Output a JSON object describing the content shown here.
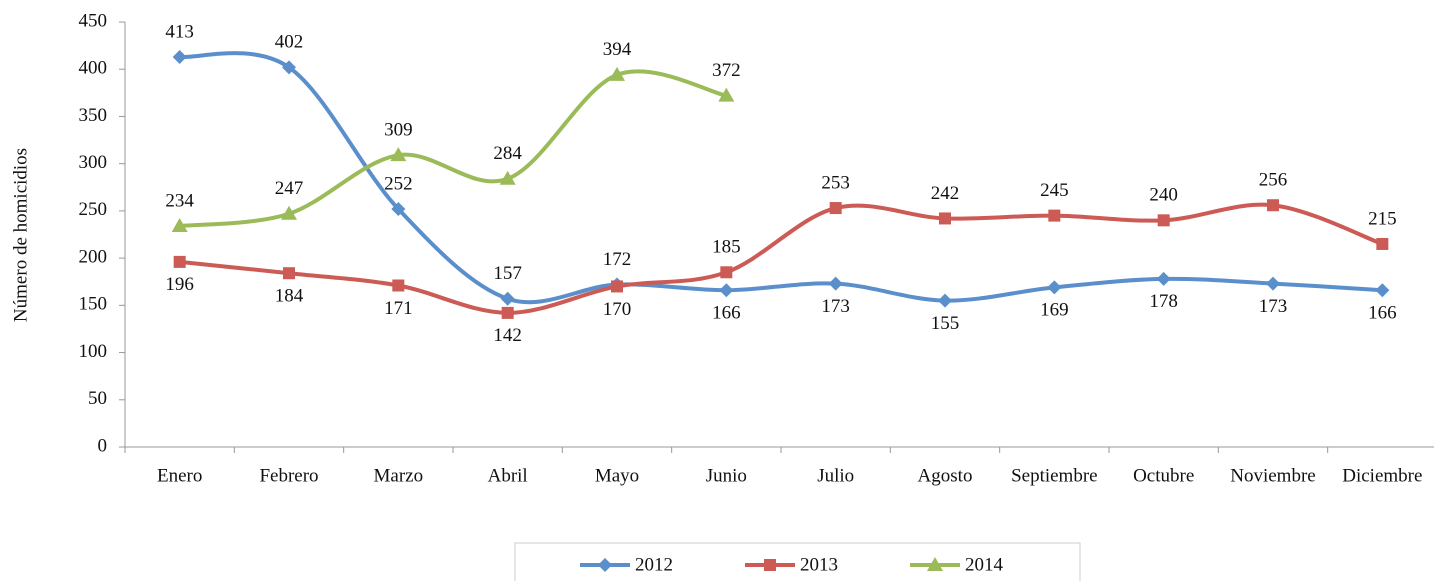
{
  "chart_data": {
    "type": "line",
    "y_label": "Número de homicidios",
    "categories": [
      "Enero",
      "Febrero",
      "Marzo",
      "Abril",
      "Mayo",
      "Junio",
      "Julio",
      "Agosto",
      "Septiembre",
      "Octubre",
      "Noviembre",
      "Diciembre"
    ],
    "series": [
      {
        "name": "2012",
        "color": "#5b8fcc",
        "marker": "diamond",
        "values": [
          413,
          402,
          252,
          157,
          172,
          166,
          173,
          155,
          169,
          178,
          173,
          166
        ]
      },
      {
        "name": "2013",
        "color": "#cc5a55",
        "marker": "square",
        "values": [
          196,
          184,
          171,
          142,
          170,
          185,
          253,
          242,
          245,
          240,
          256,
          215
        ]
      },
      {
        "name": "2014",
        "color": "#9bbb59",
        "marker": "triangle",
        "values": [
          234,
          247,
          309,
          284,
          394,
          372,
          null,
          null,
          null,
          null,
          null,
          null
        ]
      }
    ],
    "ylim": [
      0,
      450
    ],
    "yticks": [
      0,
      50,
      100,
      150,
      200,
      250,
      300,
      350,
      400,
      450
    ],
    "smooth": true,
    "grid": false,
    "legend": "bottom"
  }
}
